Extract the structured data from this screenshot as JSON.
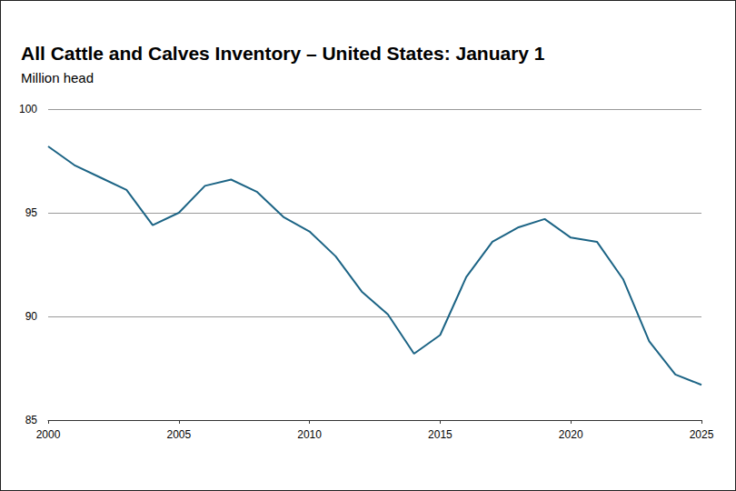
{
  "chart_data": {
    "type": "line",
    "title": "All Cattle and Calves Inventory – United States: January 1",
    "subtitle": "Million head",
    "x": [
      2000,
      2001,
      2002,
      2003,
      2004,
      2005,
      2006,
      2007,
      2008,
      2009,
      2010,
      2011,
      2012,
      2013,
      2014,
      2015,
      2016,
      2017,
      2018,
      2019,
      2020,
      2021,
      2022,
      2023,
      2024,
      2025
    ],
    "values": [
      98.2,
      97.3,
      96.7,
      96.1,
      94.4,
      95.0,
      96.3,
      96.6,
      96.0,
      94.8,
      94.1,
      92.9,
      91.2,
      90.1,
      88.2,
      89.1,
      91.9,
      93.6,
      94.3,
      94.7,
      93.8,
      93.6,
      91.8,
      88.8,
      87.2,
      86.7
    ],
    "color": "#1c6485",
    "xlim": [
      2000,
      2025
    ],
    "xticks": [
      2000,
      2005,
      2010,
      2015,
      2020,
      2025
    ],
    "ylim": [
      85,
      100
    ],
    "yticks": [
      85,
      90,
      95,
      100
    ],
    "grid": true
  }
}
